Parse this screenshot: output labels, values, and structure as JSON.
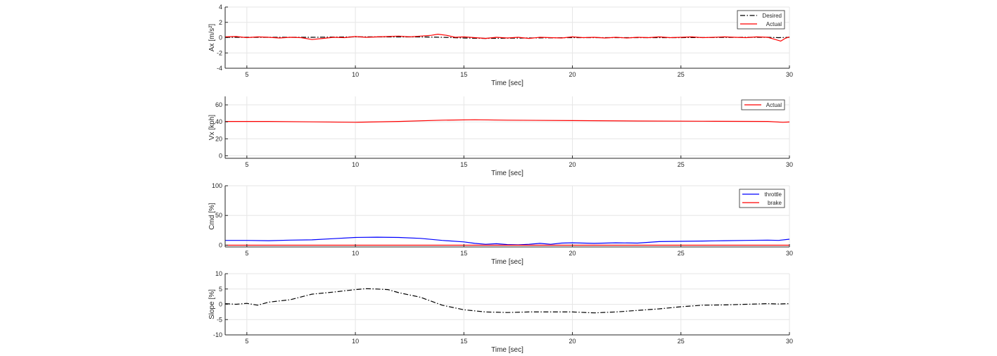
{
  "chart_data": [
    {
      "type": "line",
      "xlabel": "Time [sec]",
      "ylabel": "Ax [m/s²]",
      "xlim": [
        4,
        30
      ],
      "ylim": [
        -4,
        4
      ],
      "xticks": [
        5,
        10,
        15,
        20,
        25,
        30
      ],
      "yticks": [
        -4,
        -2,
        0,
        2,
        4
      ],
      "grid": true,
      "legend_position": "top-right",
      "series": [
        {
          "name": "Desired",
          "color": "#000000",
          "style": "dashdot",
          "x": [
            4,
            5,
            8,
            10,
            12,
            13,
            14,
            15,
            16,
            18,
            20,
            22,
            25,
            28,
            29,
            29.5,
            30
          ],
          "y": [
            0.05,
            0.05,
            0.05,
            0.1,
            0.1,
            0.1,
            0.05,
            -0.05,
            -0.1,
            -0.05,
            0.0,
            0.0,
            0.0,
            0.05,
            0.05,
            0.0,
            0.05
          ]
        },
        {
          "name": "Actual",
          "color": "#ff0000",
          "style": "solid",
          "x": [
            4,
            4.5,
            5,
            5.5,
            6,
            6.5,
            7,
            7.5,
            8,
            8.5,
            9,
            9.5,
            10,
            10.5,
            11,
            11.5,
            12,
            12.5,
            13,
            13.5,
            13.8,
            14.2,
            14.6,
            15,
            15.5,
            16,
            16.5,
            17,
            17.5,
            18,
            18.5,
            19,
            19.5,
            20,
            20.5,
            21,
            21.5,
            22,
            22.5,
            23,
            23.5,
            24,
            24.5,
            25,
            25.5,
            26,
            26.5,
            27,
            27.5,
            28,
            28.5,
            29,
            29.3,
            29.6,
            29.8,
            30
          ],
          "y": [
            0.1,
            0.15,
            0.0,
            0.1,
            0.05,
            -0.05,
            0.05,
            0.0,
            -0.25,
            -0.1,
            0.05,
            0.0,
            0.15,
            0.05,
            0.1,
            0.15,
            0.2,
            0.1,
            0.2,
            0.3,
            0.45,
            0.3,
            0.05,
            0.1,
            0.0,
            -0.1,
            0.05,
            -0.05,
            0.05,
            -0.1,
            0.05,
            0.0,
            -0.05,
            0.1,
            0.0,
            0.05,
            -0.05,
            0.05,
            -0.05,
            0.05,
            0.0,
            0.1,
            0.0,
            0.05,
            0.1,
            0.0,
            0.05,
            0.1,
            0.05,
            0.0,
            0.1,
            0.05,
            -0.2,
            -0.45,
            -0.1,
            0.1
          ]
        }
      ]
    },
    {
      "type": "line",
      "xlabel": "Time [sec]",
      "ylabel": "Vx [kph]",
      "xlim": [
        4,
        30
      ],
      "ylim": [
        -3,
        70
      ],
      "xticks": [
        5,
        10,
        15,
        20,
        25,
        30
      ],
      "yticks": [
        0,
        20,
        40,
        60
      ],
      "grid": true,
      "legend_position": "top-right",
      "series": [
        {
          "name": "Actual",
          "color": "#ff0000",
          "style": "solid",
          "x": [
            4,
            6,
            8,
            10,
            12,
            14,
            15.5,
            17,
            20,
            23,
            26,
            29,
            29.7,
            30
          ],
          "y": [
            40.5,
            40.5,
            40,
            39.5,
            40.5,
            42,
            42.5,
            42,
            41.5,
            41,
            40.7,
            40.5,
            39.5,
            39.8
          ]
        }
      ]
    },
    {
      "type": "line",
      "xlabel": "Time [sec]",
      "ylabel": "Cmd [%]",
      "xlim": [
        4,
        30
      ],
      "ylim": [
        -3,
        100
      ],
      "xticks": [
        5,
        10,
        15,
        20,
        25,
        30
      ],
      "yticks": [
        0,
        50,
        100
      ],
      "grid": true,
      "legend_position": "top-right",
      "series": [
        {
          "name": "throttle",
          "color": "#0000ff",
          "style": "solid",
          "x": [
            4,
            5,
            6,
            7,
            8,
            9,
            10,
            11,
            12,
            13,
            14,
            15,
            15.5,
            16,
            16.5,
            17,
            17.5,
            18,
            18.5,
            19,
            19.5,
            20,
            21,
            22,
            23,
            24,
            25,
            26,
            27,
            28,
            29,
            29.5,
            30
          ],
          "y": [
            8,
            8,
            7.5,
            8.5,
            9,
            11,
            13,
            13.5,
            13,
            11.5,
            8,
            5.5,
            3,
            1.5,
            2.5,
            1,
            0.5,
            1.5,
            3,
            1.5,
            3.5,
            4,
            3,
            4,
            3.5,
            6,
            6.5,
            7,
            7.5,
            8,
            8.5,
            8,
            10
          ]
        },
        {
          "name": "brake",
          "color": "#ff0000",
          "style": "solid",
          "x": [
            4,
            30
          ],
          "y": [
            0,
            0
          ]
        }
      ]
    },
    {
      "type": "line",
      "xlabel": "Time [sec]",
      "ylabel": "Slope [%]",
      "xlim": [
        4,
        30
      ],
      "ylim": [
        -10,
        10
      ],
      "xticks": [
        5,
        10,
        15,
        20,
        25,
        30
      ],
      "yticks": [
        -10,
        -5,
        0,
        5,
        10
      ],
      "grid": true,
      "series": [
        {
          "name": "",
          "color": "#000000",
          "style": "dashdot",
          "x": [
            4,
            4.5,
            5,
            5.5,
            6,
            7,
            8,
            9,
            10,
            10.5,
            11,
            11.5,
            12,
            13,
            14,
            15,
            16,
            17,
            18,
            19,
            20,
            21,
            22,
            23,
            24,
            25,
            26,
            27,
            28,
            29,
            29.5,
            30
          ],
          "y": [
            0.2,
            0.0,
            0.3,
            -0.3,
            0.7,
            1.5,
            3.3,
            4.0,
            4.8,
            5.1,
            5.0,
            4.8,
            3.8,
            2.3,
            -0.3,
            -1.8,
            -2.5,
            -2.7,
            -2.5,
            -2.5,
            -2.5,
            -2.8,
            -2.5,
            -2.0,
            -1.5,
            -0.8,
            -0.3,
            -0.2,
            0.0,
            0.2,
            0.1,
            0.2
          ]
        }
      ]
    }
  ]
}
